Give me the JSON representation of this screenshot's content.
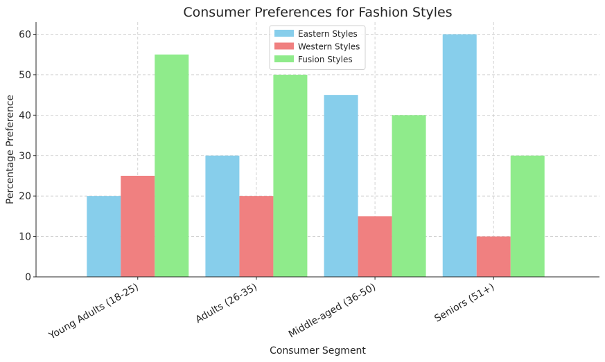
{
  "chart_data": {
    "type": "bar",
    "title": "Consumer Preferences for Fashion Styles",
    "xlabel": "Consumer Segment",
    "ylabel": "Percentage Preference",
    "categories": [
      "Young Adults (18-25)",
      "Adults (26-35)",
      "Middle-aged (36-50)",
      "Seniors (51+)"
    ],
    "series": [
      {
        "name": "Eastern Styles",
        "color": "#87ceeb",
        "values": [
          20,
          30,
          45,
          60
        ]
      },
      {
        "name": "Western Styles",
        "color": "#f08080",
        "values": [
          25,
          20,
          15,
          10
        ]
      },
      {
        "name": "Fusion Styles",
        "color": "#8feb8b",
        "values": [
          55,
          50,
          40,
          30
        ]
      }
    ],
    "yticks": [
      0,
      10,
      20,
      30,
      40,
      50,
      60
    ],
    "ylim": [
      0,
      63
    ],
    "grid": true,
    "legend": "top-center"
  }
}
